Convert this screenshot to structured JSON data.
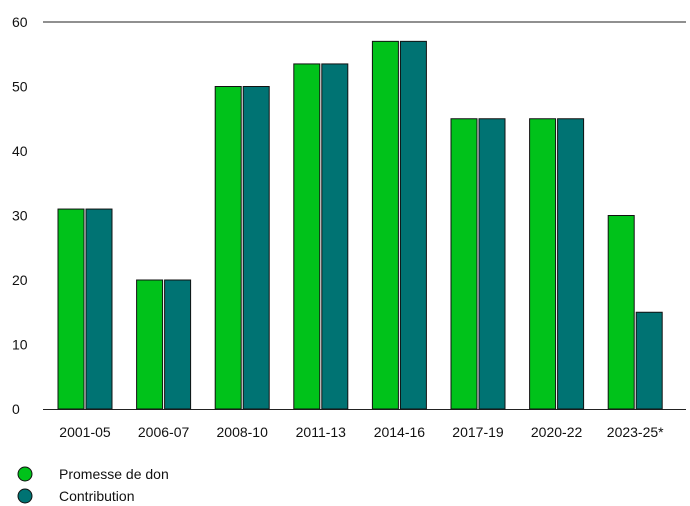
{
  "chart_data": {
    "type": "bar",
    "title": "",
    "xlabel": "",
    "ylabel": "",
    "categories": [
      "2001-05",
      "2006-07",
      "2008-10",
      "2011-13",
      "2014-16",
      "2017-19",
      "2020-22",
      "2023-25*"
    ],
    "series": [
      {
        "name": "Promesse de don",
        "color": "#00c21a",
        "values": [
          31,
          20,
          50,
          53.5,
          57,
          45,
          45,
          30
        ]
      },
      {
        "name": "Contribution",
        "color": "#007373",
        "values": [
          31,
          20,
          50,
          53.5,
          57,
          45,
          45,
          15
        ]
      }
    ],
    "ylim": [
      0,
      60
    ],
    "yticks": [
      0,
      10,
      20,
      30,
      40,
      50,
      60
    ],
    "grid": false,
    "legend_position": "bottom-left"
  }
}
